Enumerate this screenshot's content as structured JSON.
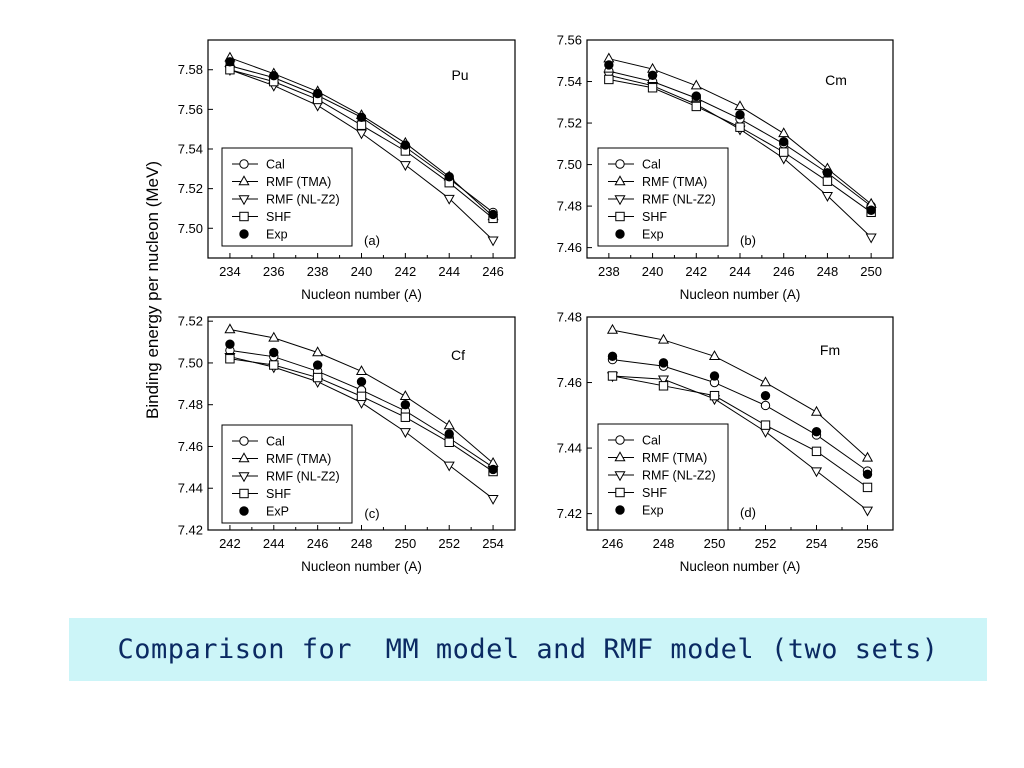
{
  "figure": {
    "shared_ylabel": "Binding energy per nucleon  (MeV)"
  },
  "caption": "Comparison for  MM model and RMF model (two sets)",
  "legend_order": [
    "Cal",
    "RMF (TMA)",
    "RMF (NL-Z2)",
    "SHF",
    "Exp"
  ],
  "chart_data": [
    {
      "type": "line",
      "panel_label": "(a)",
      "annotation": "Pu",
      "xlabel": "Nucleon number (A)",
      "ylabel": "Binding energy per nucleon  (MeV)",
      "x": [
        234,
        236,
        238,
        240,
        242,
        244,
        246
      ],
      "xlim": [
        233,
        247
      ],
      "ylim": [
        7.485,
        7.595
      ],
      "xticks": [
        "234",
        "236",
        "238",
        "240",
        "242",
        "244",
        "246"
      ],
      "yticks": [
        "7.50",
        "7.52",
        "7.54",
        "7.56",
        "7.58"
      ],
      "legend_labels": [
        "Cal",
        "RMF (TMA)",
        "RMF (NL-Z2)",
        "SHF",
        "Exp"
      ],
      "series": [
        {
          "name": "Cal",
          "marker": "circle-open",
          "line": true,
          "values": [
            7.582,
            7.576,
            7.567,
            7.556,
            7.541,
            7.525,
            7.508
          ]
        },
        {
          "name": "RMF (TMA)",
          "marker": "triangle-up-open",
          "line": true,
          "values": [
            7.586,
            7.578,
            7.569,
            7.557,
            7.543,
            7.526,
            7.506
          ]
        },
        {
          "name": "RMF (NL-Z2)",
          "marker": "triangle-down-open",
          "line": true,
          "values": [
            7.58,
            7.572,
            7.562,
            7.548,
            7.532,
            7.515,
            7.494
          ]
        },
        {
          "name": "SHF",
          "marker": "square-open",
          "line": true,
          "values": [
            7.58,
            7.574,
            7.565,
            7.552,
            7.539,
            7.523,
            7.505
          ]
        },
        {
          "name": "Exp",
          "marker": "circle-filled",
          "line": false,
          "values": [
            7.584,
            7.577,
            7.568,
            7.556,
            7.542,
            7.526,
            7.507
          ]
        }
      ]
    },
    {
      "type": "line",
      "panel_label": "(b)",
      "annotation": "Cm",
      "xlabel": "Nucleon number (A)",
      "ylabel": "",
      "x": [
        238,
        240,
        242,
        244,
        246,
        248,
        250
      ],
      "xlim": [
        237,
        251
      ],
      "ylim": [
        7.455,
        7.56
      ],
      "xticks": [
        "238",
        "240",
        "242",
        "244",
        "246",
        "248",
        "250"
      ],
      "yticks": [
        "7.46",
        "7.48",
        "7.50",
        "7.52",
        "7.54",
        "7.56"
      ],
      "legend_labels": [
        "Cal",
        "RMF (TMA)",
        "RMF (NL-Z2)",
        "SHF",
        "Exp"
      ],
      "series": [
        {
          "name": "Cal",
          "marker": "circle-open",
          "line": true,
          "values": [
            7.545,
            7.54,
            7.532,
            7.522,
            7.51,
            7.496,
            7.48
          ]
        },
        {
          "name": "RMF (TMA)",
          "marker": "triangle-up-open",
          "line": true,
          "values": [
            7.551,
            7.546,
            7.538,
            7.528,
            7.515,
            7.498,
            7.481
          ]
        },
        {
          "name": "RMF (NL-Z2)",
          "marker": "triangle-down-open",
          "line": true,
          "values": [
            7.543,
            7.538,
            7.529,
            7.517,
            7.503,
            7.485,
            7.465
          ]
        },
        {
          "name": "SHF",
          "marker": "square-open",
          "line": true,
          "values": [
            7.541,
            7.537,
            7.528,
            7.518,
            7.506,
            7.492,
            7.477
          ]
        },
        {
          "name": "Exp",
          "marker": "circle-filled",
          "line": false,
          "values": [
            7.548,
            7.543,
            7.533,
            7.524,
            7.511,
            7.496,
            7.478
          ]
        }
      ]
    },
    {
      "type": "line",
      "panel_label": "(c)",
      "annotation": "Cf",
      "xlabel": "Nucleon number (A)",
      "ylabel": "",
      "x": [
        242,
        244,
        246,
        248,
        250,
        252,
        254
      ],
      "xlim": [
        241,
        255
      ],
      "ylim": [
        7.42,
        7.522
      ],
      "xticks": [
        "242",
        "244",
        "246",
        "248",
        "250",
        "252",
        "254"
      ],
      "yticks": [
        "7.42",
        "7.44",
        "7.46",
        "7.48",
        "7.50",
        "7.52"
      ],
      "legend_labels": [
        "Cal",
        "RMF (TMA)",
        "RMF (NL-Z2)",
        "SHF",
        "ExP"
      ],
      "series": [
        {
          "name": "Cal",
          "marker": "circle-open",
          "line": true,
          "values": [
            7.506,
            7.503,
            7.496,
            7.487,
            7.477,
            7.464,
            7.45
          ]
        },
        {
          "name": "RMF (TMA)",
          "marker": "triangle-up-open",
          "line": true,
          "values": [
            7.516,
            7.512,
            7.505,
            7.496,
            7.484,
            7.47,
            7.452
          ]
        },
        {
          "name": "RMF (NL-Z2)",
          "marker": "triangle-down-open",
          "line": true,
          "values": [
            7.503,
            7.498,
            7.491,
            7.481,
            7.467,
            7.451,
            7.435
          ]
        },
        {
          "name": "SHF",
          "marker": "square-open",
          "line": true,
          "values": [
            7.502,
            7.499,
            7.493,
            7.484,
            7.474,
            7.462,
            7.448
          ]
        },
        {
          "name": "ExP",
          "marker": "circle-filled",
          "line": false,
          "values": [
            7.509,
            7.505,
            7.499,
            7.491,
            7.48,
            7.466,
            7.449
          ]
        }
      ]
    },
    {
      "type": "line",
      "panel_label": "(d)",
      "annotation": "Fm",
      "xlabel": "Nucleon number (A)",
      "ylabel": "",
      "x": [
        246,
        248,
        250,
        252,
        254,
        256
      ],
      "xlim": [
        245,
        257
      ],
      "ylim": [
        7.415,
        7.48
      ],
      "xticks": [
        "246",
        "248",
        "250",
        "252",
        "254",
        "256"
      ],
      "yticks": [
        "7.42",
        "7.44",
        "7.46",
        "7.48"
      ],
      "legend_labels": [
        "Cal",
        "RMF (TMA)",
        "RMF (NL-Z2)",
        "SHF",
        "Exp"
      ],
      "series": [
        {
          "name": "Cal",
          "marker": "circle-open",
          "line": true,
          "values": [
            7.467,
            7.465,
            7.46,
            7.453,
            7.444,
            7.433
          ]
        },
        {
          "name": "RMF (TMA)",
          "marker": "triangle-up-open",
          "line": true,
          "values": [
            7.476,
            7.473,
            7.468,
            7.46,
            7.451,
            7.437
          ]
        },
        {
          "name": "RMF (NL-Z2)",
          "marker": "triangle-down-open",
          "line": true,
          "values": [
            7.462,
            7.461,
            7.455,
            7.445,
            7.433,
            7.421
          ]
        },
        {
          "name": "SHF",
          "marker": "square-open",
          "line": true,
          "values": [
            7.462,
            7.459,
            7.456,
            7.447,
            7.439,
            7.428
          ]
        },
        {
          "name": "Exp",
          "marker": "circle-filled",
          "line": false,
          "values": [
            7.468,
            7.466,
            7.462,
            7.456,
            7.445,
            7.432
          ]
        }
      ]
    }
  ]
}
